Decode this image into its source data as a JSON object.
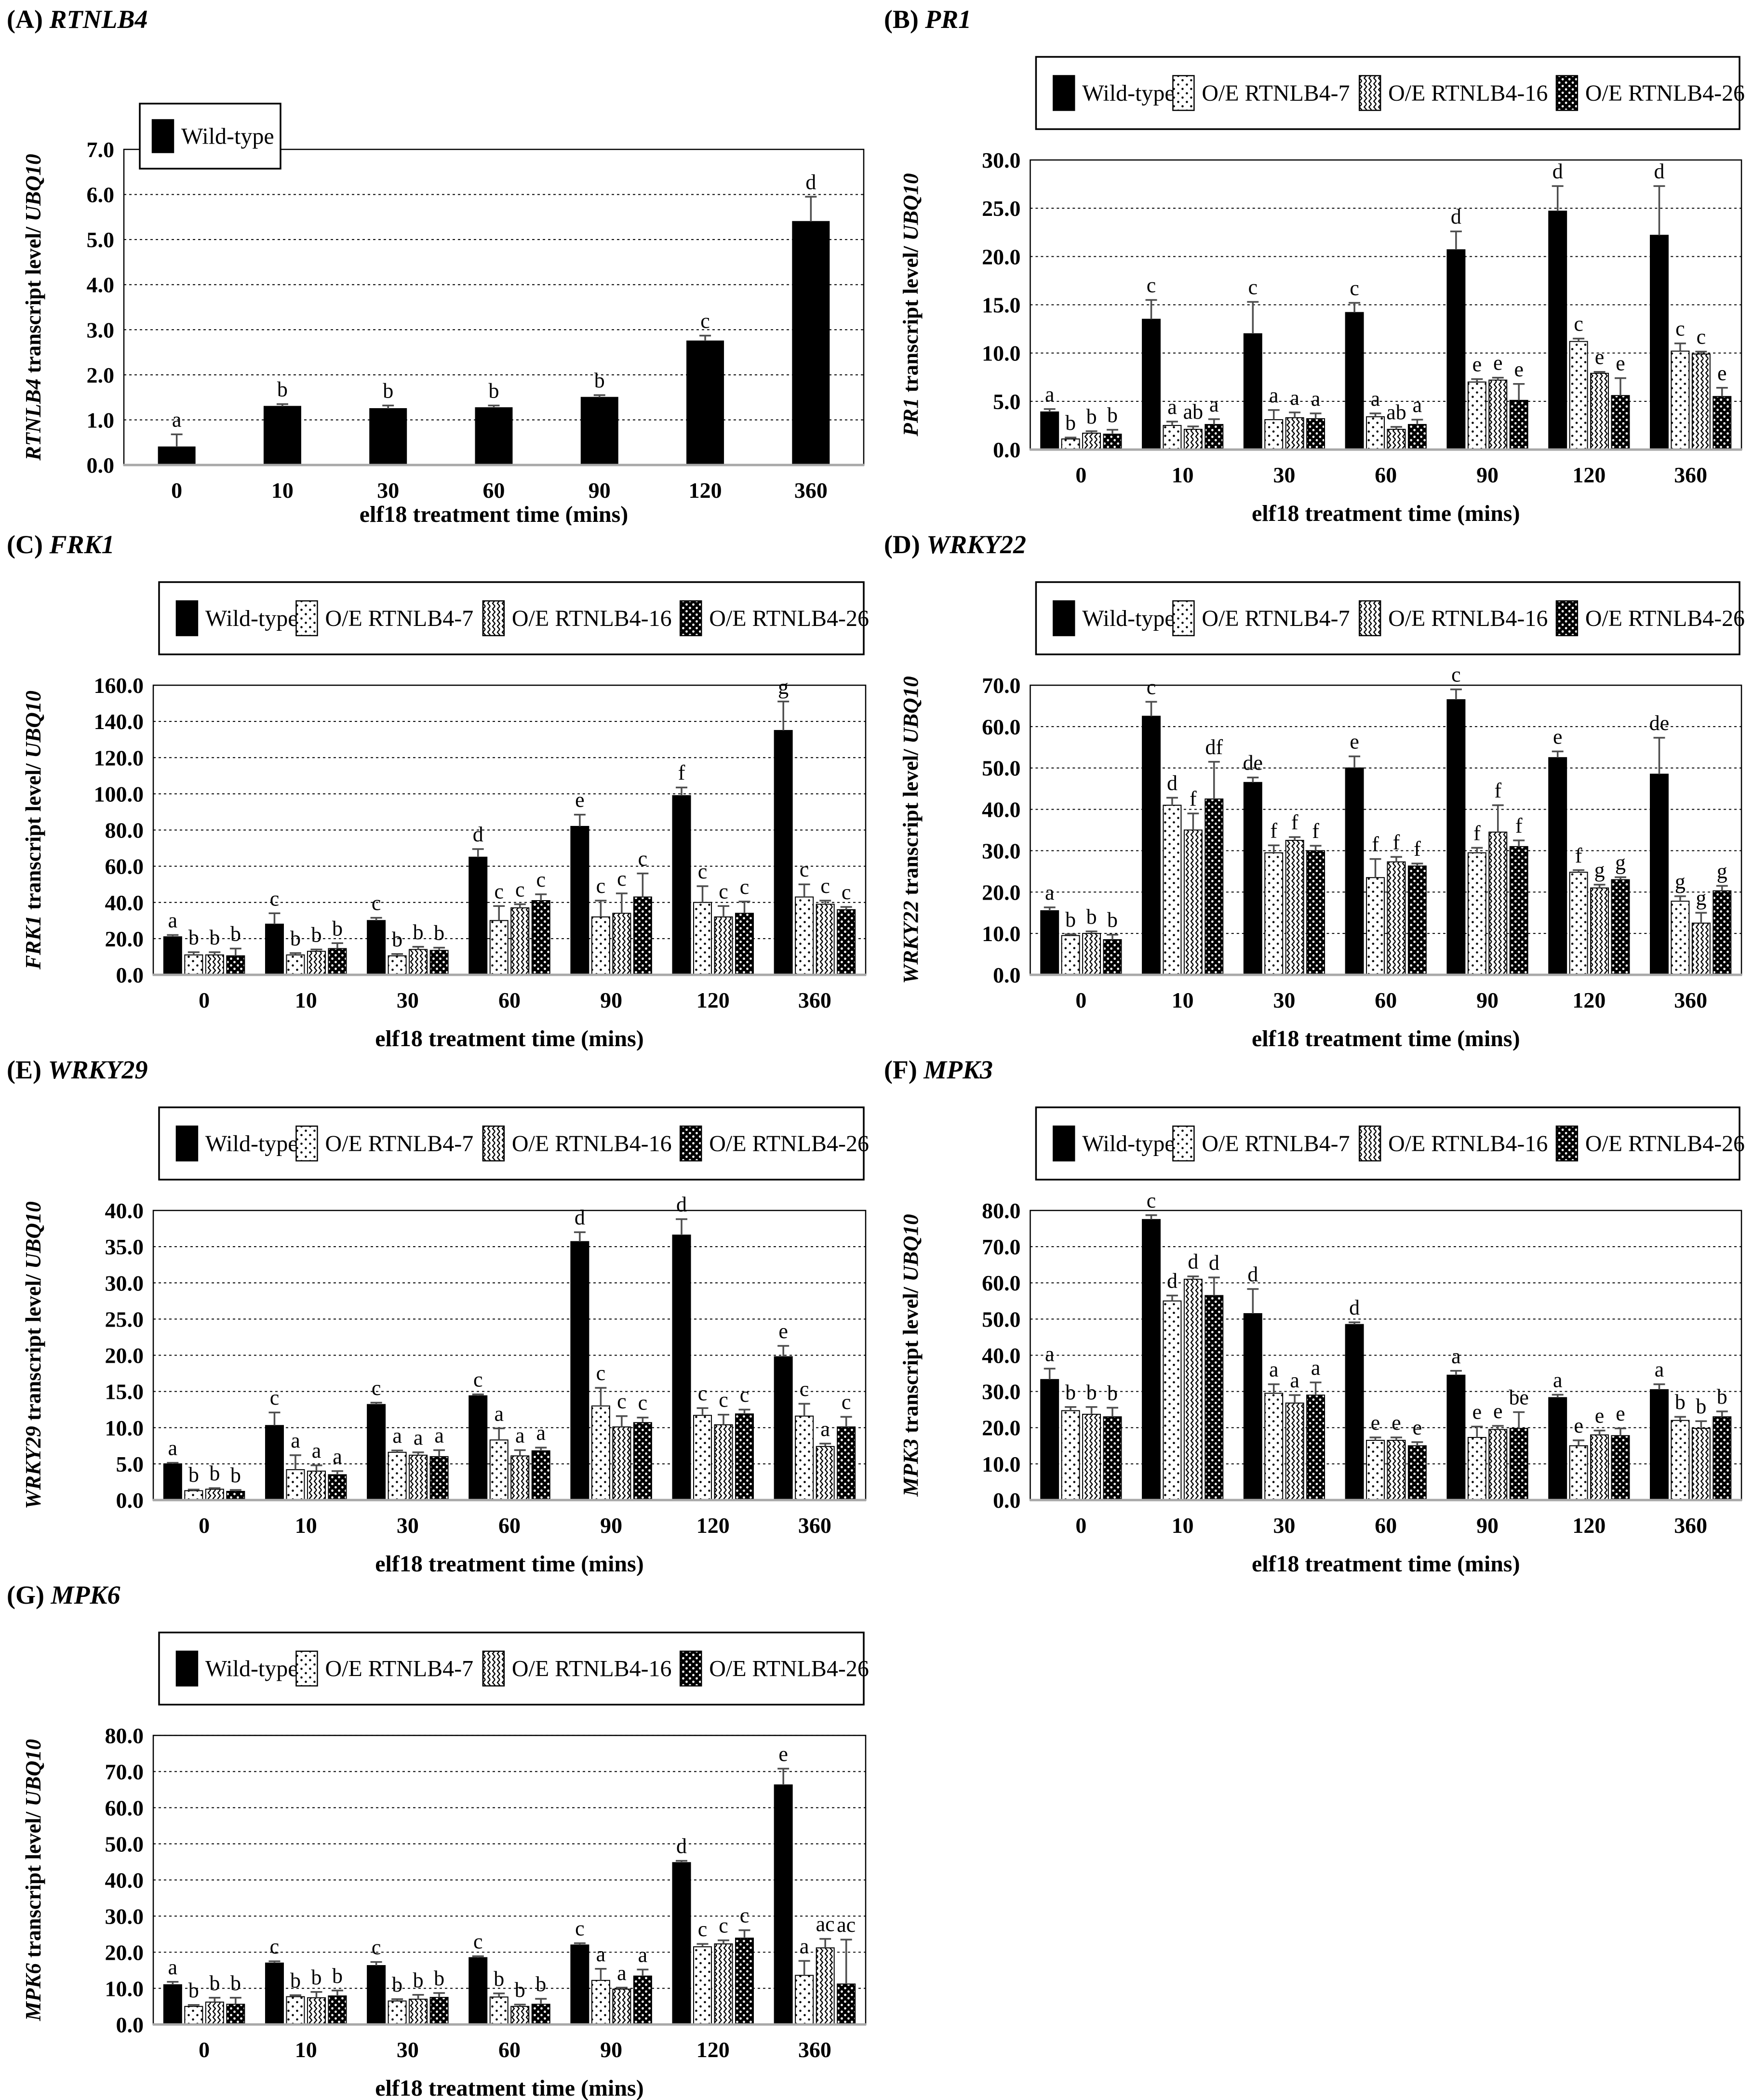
{
  "figure": {
    "background": "#ffffff",
    "bar_color": "#000000",
    "error_bar_color": "#4d4d4d",
    "grid_color": "#000000",
    "baseline_color": "#a8a8a8",
    "xlabel": "elf18 treatment time (mins)",
    "x_categories": [
      "0",
      "10",
      "30",
      "60",
      "90",
      "120",
      "360"
    ],
    "legend_labels": [
      "Wild-type",
      "O/E RTNLB4-7",
      "O/E RTNLB4-16",
      "O/E RTNLB4-26"
    ],
    "series_patterns": [
      "solid",
      "dots",
      "zigzag",
      "checker"
    ]
  },
  "chart_data": [
    {
      "type": "bar",
      "panel": "A",
      "panel_label": "(A)",
      "gene": "RTNLB4",
      "ylabel_gene": "RTNLB4",
      "ylabel_mid": " transcript level/ ",
      "ylabel_ref": "UBQ10",
      "xlabel": "elf18 treatment time (mins)",
      "categories": [
        "0",
        "10",
        "30",
        "60",
        "90",
        "120",
        "360"
      ],
      "ylim": [
        0,
        7.0
      ],
      "ytick_step": 1.0,
      "legend_position": "inside-top-left",
      "series": [
        {
          "name": "Wild-type",
          "pattern": "solid",
          "values": [
            0.4,
            1.3,
            1.25,
            1.27,
            1.5,
            2.75,
            5.4
          ],
          "errors": [
            0.28,
            0.05,
            0.07,
            0.05,
            0.05,
            0.12,
            0.55
          ],
          "letters": [
            "a",
            "b",
            "b",
            "b",
            "b",
            "c",
            "d"
          ]
        }
      ]
    },
    {
      "type": "bar",
      "panel": "B",
      "panel_label": "(B)",
      "gene": "PR1",
      "ylabel_gene": "PR1",
      "ylabel_mid": " transcript level/ ",
      "ylabel_ref": "UBQ10",
      "xlabel": "elf18 treatment time (mins)",
      "categories": [
        "0",
        "10",
        "30",
        "60",
        "90",
        "120",
        "360"
      ],
      "ylim": [
        0,
        30.0
      ],
      "ytick_step": 5.0,
      "legend_position": "top",
      "series": [
        {
          "name": "Wild-type",
          "pattern": "solid",
          "values": [
            3.9,
            13.5,
            12.0,
            14.2,
            20.7,
            24.7,
            22.2
          ],
          "errors": [
            0.3,
            2.0,
            3.3,
            1.0,
            1.9,
            2.6,
            5.1
          ],
          "letters": [
            "a",
            "c",
            "c",
            "c",
            "d",
            "d",
            "d"
          ]
        },
        {
          "name": "O/E RTNLB4-7",
          "pattern": "dots",
          "values": [
            1.1,
            2.5,
            3.1,
            3.4,
            7.0,
            11.2,
            10.2
          ],
          "errors": [
            0.15,
            0.4,
            1.0,
            0.35,
            0.3,
            0.3,
            0.8
          ],
          "letters": [
            "b",
            "a",
            "a",
            "a",
            "e",
            "c",
            "c"
          ]
        },
        {
          "name": "O/E RTNLB4-16",
          "pattern": "zigzag",
          "values": [
            1.7,
            2.1,
            3.3,
            2.1,
            7.2,
            7.9,
            9.9
          ],
          "errors": [
            0.2,
            0.3,
            0.55,
            0.25,
            0.25,
            0.15,
            0.25
          ],
          "letters": [
            "b",
            "ab",
            "a",
            "ab",
            "e",
            "e",
            "c"
          ]
        },
        {
          "name": "O/E RTNLB4-26",
          "pattern": "checker",
          "values": [
            1.6,
            2.6,
            3.2,
            2.6,
            5.1,
            5.6,
            5.5
          ],
          "errors": [
            0.45,
            0.55,
            0.55,
            0.5,
            1.7,
            1.8,
            0.9
          ],
          "letters": [
            "b",
            "a",
            "a",
            "a",
            "e",
            "e",
            "e"
          ]
        }
      ]
    },
    {
      "type": "bar",
      "panel": "C",
      "panel_label": "(C)",
      "gene": "FRK1",
      "ylabel_gene": "FRK1",
      "ylabel_mid": " transcript level/ ",
      "ylabel_ref": "UBQ10",
      "xlabel": "elf18 treatment time (mins)",
      "categories": [
        "0",
        "10",
        "30",
        "60",
        "90",
        "120",
        "360"
      ],
      "ylim": [
        0,
        160.0
      ],
      "ytick_step": 20.0,
      "legend_position": "top",
      "series": [
        {
          "name": "Wild-type",
          "pattern": "solid",
          "values": [
            21,
            28,
            30,
            65,
            82,
            99,
            135
          ],
          "errors": [
            1,
            6,
            1.5,
            4.5,
            6.5,
            4.5,
            16
          ],
          "letters": [
            "a",
            "c",
            "c",
            "d",
            "e",
            "f",
            "g"
          ]
        },
        {
          "name": "O/E RTNLB4-7",
          "pattern": "dots",
          "values": [
            11,
            11,
            10.5,
            30,
            32,
            40,
            43
          ],
          "errors": [
            1.5,
            1,
            1,
            8,
            9,
            9,
            7
          ],
          "letters": [
            "b",
            "b",
            "b",
            "c",
            "c",
            "c",
            "c"
          ]
        },
        {
          "name": "O/E RTNLB4-16",
          "pattern": "zigzag",
          "values": [
            11,
            13,
            14,
            37,
            34,
            32,
            39
          ],
          "errors": [
            1.5,
            1,
            1.5,
            2,
            11,
            6,
            2
          ],
          "letters": [
            "b",
            "b",
            "b",
            "c",
            "c",
            "c",
            "c"
          ]
        },
        {
          "name": "O/E RTNLB4-26",
          "pattern": "checker",
          "values": [
            10.5,
            14.5,
            13.5,
            41,
            43,
            34,
            36
          ],
          "errors": [
            4,
            3,
            1.5,
            3.5,
            13,
            6.5,
            1.5
          ],
          "letters": [
            "b",
            "b",
            "b",
            "c",
            "c",
            "c",
            "c"
          ]
        }
      ]
    },
    {
      "type": "bar",
      "panel": "D",
      "panel_label": "(D)",
      "gene": "WRKY22",
      "ylabel_gene": "WRKY22",
      "ylabel_mid": " transcript level/ ",
      "ylabel_ref": "UBQ10",
      "xlabel": "elf18 treatment time (mins)",
      "categories": [
        "0",
        "10",
        "30",
        "60",
        "90",
        "120",
        "360"
      ],
      "ylim": [
        0,
        70.0
      ],
      "ytick_step": 10.0,
      "legend_position": "top",
      "series": [
        {
          "name": "Wild-type",
          "pattern": "solid",
          "values": [
            15.5,
            62.5,
            46.5,
            50,
            66.5,
            52.5,
            48.5
          ],
          "errors": [
            0.8,
            3.5,
            1.2,
            2.8,
            2.5,
            1.5,
            8.8
          ],
          "letters": [
            "a",
            "c",
            "de",
            "e",
            "c",
            "e",
            "de"
          ]
        },
        {
          "name": "O/E RTNLB4-7",
          "pattern": "dots",
          "values": [
            9.5,
            41,
            29.5,
            23.5,
            29.5,
            24.8,
            17.8
          ],
          "errors": [
            0.3,
            1.8,
            1.8,
            4.5,
            1.2,
            0.5,
            1.2
          ],
          "letters": [
            "b",
            "d",
            "f",
            "f",
            "f",
            "f",
            "g"
          ]
        },
        {
          "name": "O/E RTNLB4-16",
          "pattern": "zigzag",
          "values": [
            10,
            35,
            32.5,
            27.3,
            34.5,
            21,
            12.5
          ],
          "errors": [
            0.5,
            4,
            0.8,
            1.2,
            6.5,
            0.8,
            2.5
          ],
          "letters": [
            "b",
            "f",
            "f",
            "f",
            "f",
            "g",
            "g"
          ]
        },
        {
          "name": "O/E RTNLB4-26",
          "pattern": "checker",
          "values": [
            8.5,
            42.5,
            30,
            26.3,
            31,
            23,
            20.3
          ],
          "errors": [
            1.2,
            9,
            1.2,
            0.6,
            1.5,
            0.6,
            1.2
          ],
          "letters": [
            "b",
            "df",
            "f",
            "f",
            "f",
            "g",
            "g"
          ]
        }
      ]
    },
    {
      "type": "bar",
      "panel": "E",
      "panel_label": "(E)",
      "gene": "WRKY29",
      "ylabel_gene": "WRKY29",
      "ylabel_mid": " transcript level/ ",
      "ylabel_ref": "UBQ10",
      "xlabel": "elf18 treatment time (mins)",
      "categories": [
        "0",
        "10",
        "30",
        "60",
        "90",
        "120",
        "360"
      ],
      "ylim": [
        0,
        40.0
      ],
      "ytick_step": 5.0,
      "legend_position": "top",
      "series": [
        {
          "name": "Wild-type",
          "pattern": "solid",
          "values": [
            5.0,
            10.3,
            13.2,
            14.4,
            35.7,
            36.6,
            19.8
          ],
          "errors": [
            0.15,
            1.8,
            0.25,
            0.2,
            1.3,
            2.2,
            1.5
          ],
          "letters": [
            "a",
            "c",
            "c",
            "c",
            "d",
            "d",
            "e"
          ]
        },
        {
          "name": "O/E RTNLB4-7",
          "pattern": "dots",
          "values": [
            1.3,
            4.2,
            6.6,
            8.3,
            13.0,
            11.7,
            11.6
          ],
          "errors": [
            0.15,
            2.0,
            0.25,
            1.6,
            2.5,
            1.0,
            1.7
          ],
          "letters": [
            "b",
            "a",
            "a",
            "a",
            "c",
            "c",
            "c"
          ]
        },
        {
          "name": "O/E RTNLB4-16",
          "pattern": "zigzag",
          "values": [
            1.5,
            4.0,
            6.2,
            6.1,
            10.1,
            10.4,
            7.4
          ],
          "errors": [
            0.15,
            0.8,
            0.4,
            0.8,
            1.5,
            1.4,
            0.4
          ],
          "letters": [
            "b",
            "a",
            "a",
            "a",
            "c",
            "c",
            "a"
          ]
        },
        {
          "name": "O/E RTNLB4-26",
          "pattern": "checker",
          "values": [
            1.2,
            3.5,
            6.0,
            6.8,
            10.7,
            11.9,
            10.1
          ],
          "errors": [
            0.2,
            0.5,
            0.9,
            0.45,
            0.7,
            0.6,
            1.4
          ],
          "letters": [
            "b",
            "a",
            "a",
            "a",
            "c",
            "c",
            "c"
          ]
        }
      ]
    },
    {
      "type": "bar",
      "panel": "F",
      "panel_label": "(F)",
      "gene": "MPK3",
      "ylabel_gene": "MPK3",
      "ylabel_mid": " transcript level/ ",
      "ylabel_ref": "UBQ10",
      "xlabel": "elf18 treatment time (mins)",
      "categories": [
        "0",
        "10",
        "30",
        "60",
        "90",
        "120",
        "360"
      ],
      "ylim": [
        0,
        80.0
      ],
      "ytick_step": 10.0,
      "legend_position": "top",
      "series": [
        {
          "name": "Wild-type",
          "pattern": "solid",
          "values": [
            33.3,
            77.5,
            51.5,
            48.5,
            34.5,
            28.3,
            30.5
          ],
          "errors": [
            3.0,
            1.2,
            6.8,
            0.6,
            1.2,
            0.8,
            1.5
          ],
          "letters": [
            "a",
            "c",
            "d",
            "d",
            "a",
            "a",
            "a"
          ]
        },
        {
          "name": "O/E RTNLB4-7",
          "pattern": "dots",
          "values": [
            24.7,
            55,
            29.5,
            16.5,
            17.3,
            15,
            22
          ],
          "errors": [
            1.0,
            1.5,
            2.5,
            0.8,
            3.0,
            1.5,
            1.0
          ],
          "letters": [
            "b",
            "d",
            "a",
            "e",
            "e",
            "e",
            "b"
          ]
        },
        {
          "name": "O/E RTNLB4-16",
          "pattern": "zigzag",
          "values": [
            23.7,
            61,
            26.8,
            16.5,
            19.5,
            18,
            19.8
          ],
          "errors": [
            2.0,
            0.8,
            2.2,
            0.8,
            1.0,
            1.2,
            2.0
          ],
          "letters": [
            "b",
            "d",
            "a",
            "e",
            "e",
            "e",
            "b"
          ]
        },
        {
          "name": "O/E RTNLB4-26",
          "pattern": "checker",
          "values": [
            23,
            56.5,
            29,
            15,
            19.8,
            17.8,
            23
          ],
          "errors": [
            2.5,
            5.0,
            3.5,
            1.0,
            4.5,
            2.0,
            1.5
          ],
          "letters": [
            "b",
            "d",
            "a",
            "e",
            "be",
            "e",
            "b"
          ]
        }
      ]
    },
    {
      "type": "bar",
      "panel": "G",
      "panel_label": "(G)",
      "gene": "MPK6",
      "ylabel_gene": "MPK6",
      "ylabel_mid": " transcript level/ ",
      "ylabel_ref": "UBQ10",
      "xlabel": "elf18 treatment time (mins)",
      "categories": [
        "0",
        "10",
        "30",
        "60",
        "90",
        "120",
        "360"
      ],
      "ylim": [
        0,
        80.0
      ],
      "ytick_step": 10.0,
      "legend_position": "top",
      "series": [
        {
          "name": "Wild-type",
          "pattern": "solid",
          "values": [
            11,
            17,
            16.3,
            18.5,
            22,
            44.8,
            66.3
          ],
          "errors": [
            0.8,
            0.5,
            1.0,
            0.4,
            0.5,
            0.5,
            4.5
          ],
          "letters": [
            "a",
            "c",
            "c",
            "c",
            "c",
            "d",
            "e"
          ]
        },
        {
          "name": "O/E RTNLB4-7",
          "pattern": "dots",
          "values": [
            5,
            7.7,
            6.5,
            7.6,
            12.2,
            21.5,
            13.6
          ],
          "errors": [
            0.4,
            0.4,
            0.5,
            1.0,
            3.2,
            0.8,
            4.0
          ],
          "letters": [
            "b",
            "b",
            "b",
            "b",
            "a",
            "c",
            "a"
          ]
        },
        {
          "name": "O/E RTNLB4-16",
          "pattern": "zigzag",
          "values": [
            6.2,
            7.4,
            7.0,
            5.0,
            9.8,
            22.3,
            21.2
          ],
          "errors": [
            1.2,
            1.6,
            1.2,
            0.5,
            0.4,
            1.0,
            2.5
          ],
          "letters": [
            "b",
            "b",
            "b",
            "b",
            "a",
            "c",
            "ac"
          ]
        },
        {
          "name": "O/E RTNLB4-26",
          "pattern": "checker",
          "values": [
            5.6,
            7.9,
            7.5,
            5.6,
            13.4,
            23.9,
            11.2
          ],
          "errors": [
            1.8,
            1.5,
            1.2,
            1.5,
            1.8,
            2.2,
            12.3
          ],
          "letters": [
            "b",
            "b",
            "b",
            "b",
            "a",
            "c",
            "ac"
          ]
        }
      ]
    }
  ]
}
